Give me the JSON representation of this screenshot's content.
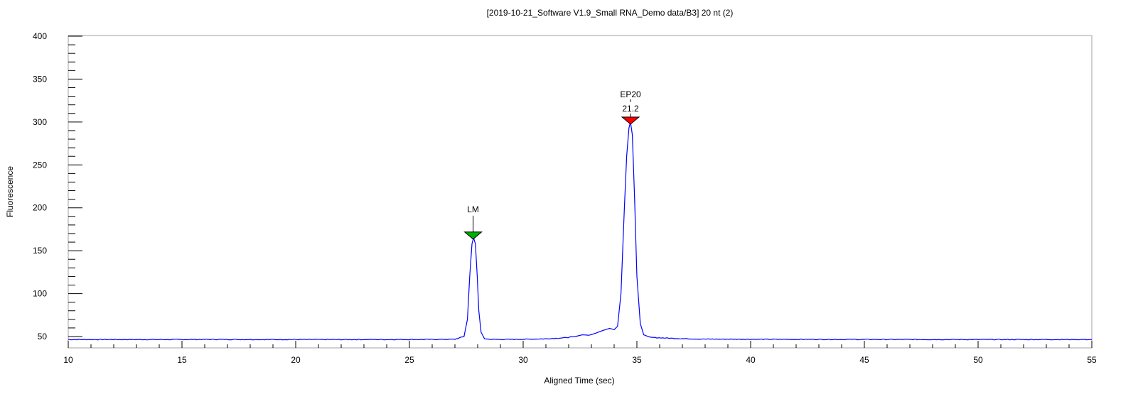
{
  "chart_data": {
    "type": "line",
    "title": "[2019-10-21_Software V1.9_Small RNA_Demo data/B3] 20 nt (2)",
    "xlabel": "Aligned Time (sec)",
    "ylabel": "Fluorescence",
    "xlim": [
      10,
      55
    ],
    "ylim": [
      45,
      400
    ],
    "x_ticks": [
      10,
      15,
      20,
      25,
      30,
      35,
      40,
      45,
      50,
      55
    ],
    "y_ticks": [
      50,
      100,
      150,
      200,
      250,
      300,
      350,
      400
    ],
    "grid": false,
    "legend": "none",
    "series_color": "#0000ff",
    "series": [
      {
        "baseline": 46.5,
        "x": [
          10,
          11,
          12,
          13,
          14,
          15,
          16,
          17,
          18,
          19,
          20,
          21,
          22,
          23,
          24,
          25,
          26,
          27,
          27.4,
          27.55,
          27.65,
          27.75,
          27.82,
          27.9,
          27.98,
          28.05,
          28.15,
          28.3,
          28.5,
          29,
          30,
          31,
          31.8,
          32.3,
          32.6,
          32.9,
          33.2,
          33.5,
          33.8,
          34.0,
          34.15,
          34.3,
          34.45,
          34.55,
          34.65,
          34.72,
          34.8,
          34.9,
          35.0,
          35.15,
          35.3,
          35.6,
          36,
          37,
          38,
          40,
          42,
          44,
          46,
          48,
          50,
          52,
          55
        ],
        "y": [
          46.5,
          46.5,
          46.5,
          46.5,
          46.5,
          46.5,
          46.6,
          46.6,
          46.5,
          46.5,
          46.5,
          46.5,
          46.5,
          46.5,
          46.5,
          46.6,
          46.6,
          46.8,
          50,
          70,
          120,
          158,
          165,
          158,
          120,
          80,
          55,
          47.5,
          46.8,
          46.6,
          46.8,
          47.3,
          48.5,
          50,
          52,
          51.5,
          54,
          57,
          59.5,
          58,
          62,
          100,
          200,
          260,
          293,
          300,
          285,
          210,
          120,
          65,
          52,
          49,
          48.5,
          47.5,
          47,
          46.8,
          46.7,
          46.6,
          46.6,
          46.5,
          46.5,
          46.5,
          46.5
        ]
      }
    ],
    "markers": [
      {
        "label": "LM",
        "sublabel": "",
        "x": 27.8,
        "y": 166,
        "color": "#00b000"
      },
      {
        "label": "EP20",
        "sublabel": "21.2",
        "x": 34.72,
        "y": 300,
        "color": "#ff0000"
      }
    ]
  }
}
